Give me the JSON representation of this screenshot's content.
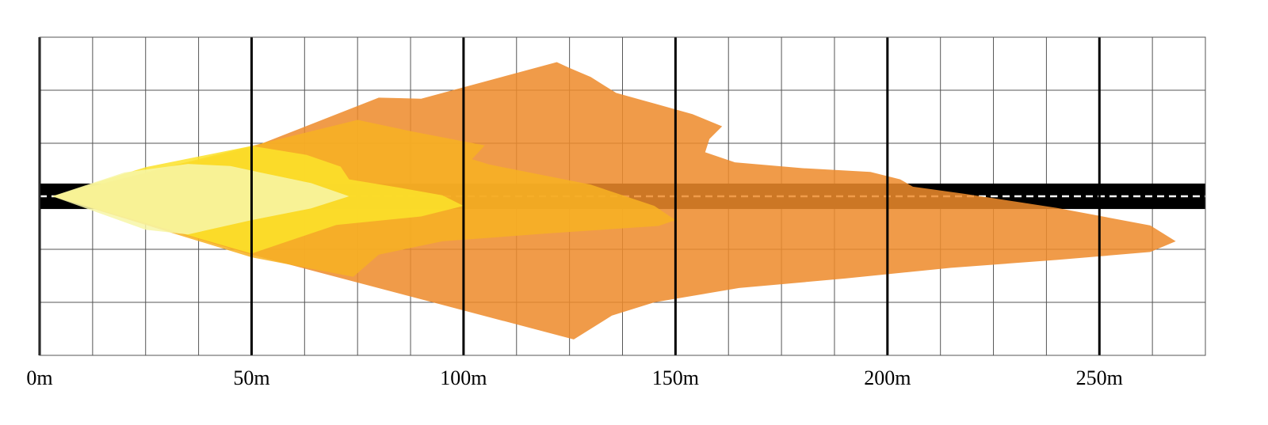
{
  "chart_data": {
    "type": "area",
    "title": "",
    "xlabel": "",
    "ylabel": "",
    "xlim": [
      0,
      275
    ],
    "ylim": [
      -30,
      30
    ],
    "x_ticks": [
      0,
      50,
      100,
      150,
      200,
      250
    ],
    "x_tick_labels": [
      "0m",
      "50m",
      "100m",
      "150m",
      "200m",
      "250m"
    ],
    "x_minor_step": 12.5,
    "y_ticks": [
      -30,
      -20,
      -10,
      0,
      10,
      20,
      30
    ],
    "grid": true,
    "road": {
      "center_y": 0,
      "half_width": 2.4,
      "color": "#000000",
      "center_dash_color": "#ffffff"
    },
    "series": [
      {
        "color": "#ee8a2b",
        "outline": [
          [
            3,
            0
          ],
          [
            50,
            9.2
          ],
          [
            80,
            18.6
          ],
          [
            90,
            18.4
          ],
          [
            122,
            25.3
          ],
          [
            125,
            24.2
          ],
          [
            130,
            22.5
          ],
          [
            136,
            19.5
          ],
          [
            145,
            17.5
          ],
          [
            154,
            15.5
          ],
          [
            161,
            13.2
          ],
          [
            158,
            10.8
          ],
          [
            157,
            8.3
          ],
          [
            164,
            6.4
          ],
          [
            180,
            5.3
          ],
          [
            196,
            4.6
          ],
          [
            203,
            3.2
          ],
          [
            206,
            1.8
          ],
          [
            218,
            0.5
          ],
          [
            240,
            -2.2
          ],
          [
            262,
            -5.5
          ],
          [
            268,
            -8.5
          ],
          [
            262,
            -10.5
          ],
          [
            240,
            -12.0
          ],
          [
            215,
            -13.5
          ],
          [
            190,
            -15.5
          ],
          [
            165,
            -17.3
          ],
          [
            145,
            -20.0
          ],
          [
            135,
            -22.5
          ],
          [
            126,
            -27.0
          ],
          [
            50,
            -11.0
          ],
          [
            3,
            0
          ]
        ]
      },
      {
        "color": "#f7b123",
        "outline": [
          [
            3,
            0
          ],
          [
            35,
            6.5
          ],
          [
            50,
            9.5
          ],
          [
            75,
            14.4
          ],
          [
            88,
            12.2
          ],
          [
            105,
            9.6
          ],
          [
            102,
            7.0
          ],
          [
            106,
            6.0
          ],
          [
            130,
            2.2
          ],
          [
            145,
            -1.8
          ],
          [
            150,
            -4.5
          ],
          [
            146,
            -5.6
          ],
          [
            120,
            -7.0
          ],
          [
            95,
            -8.5
          ],
          [
            80,
            -11.0
          ],
          [
            74,
            -15.2
          ],
          [
            50,
            -11.5
          ],
          [
            3,
            0
          ]
        ]
      },
      {
        "color": "#fbe22a",
        "outline": [
          [
            3,
            0
          ],
          [
            25,
            5.5
          ],
          [
            50,
            9.5
          ],
          [
            63,
            7.8
          ],
          [
            71,
            5.6
          ],
          [
            73,
            3.2
          ],
          [
            85,
            1.6
          ],
          [
            95,
            0.2
          ],
          [
            100,
            -1.8
          ],
          [
            90,
            -3.8
          ],
          [
            70,
            -5.4
          ],
          [
            50,
            -10.8
          ],
          [
            3,
            0
          ]
        ]
      },
      {
        "color": "#f7f6a8",
        "outline": [
          [
            3,
            0
          ],
          [
            20,
            4.5
          ],
          [
            35,
            6.1
          ],
          [
            45,
            5.7
          ],
          [
            52,
            4.5
          ],
          [
            64,
            2.5
          ],
          [
            73,
            0
          ],
          [
            64,
            -2.3
          ],
          [
            50,
            -4.5
          ],
          [
            35,
            -7.2
          ],
          [
            25,
            -6.3
          ],
          [
            3,
            0
          ]
        ]
      }
    ]
  }
}
